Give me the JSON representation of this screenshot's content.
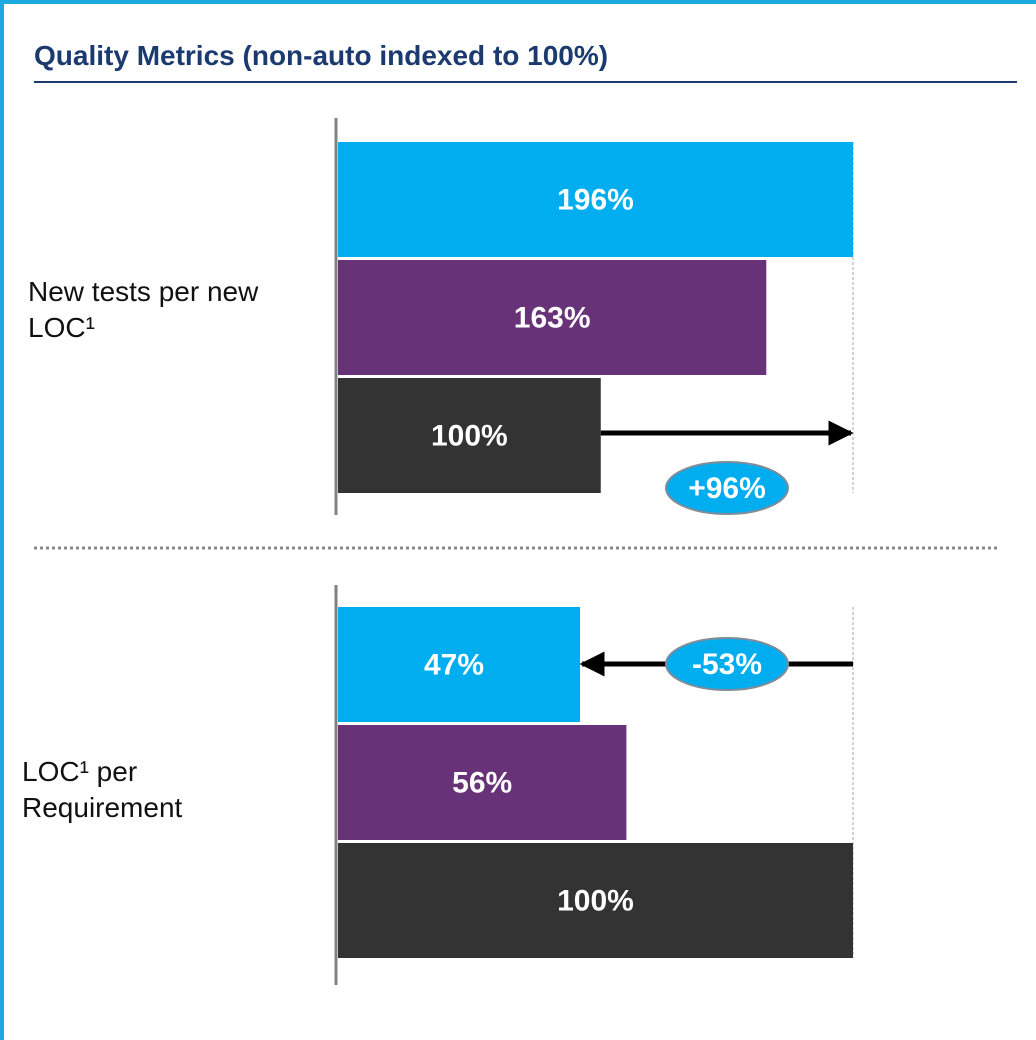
{
  "title": "Quality Metrics (non-auto indexed to 100%)",
  "chart_data": [
    {
      "type": "bar",
      "orientation": "horizontal",
      "label": "New tests per new LOC¹",
      "values": [
        196,
        163,
        100
      ],
      "value_labels": [
        "196%",
        "163%",
        "100%"
      ],
      "colors": [
        "#00adef",
        "#673278",
        "#333333"
      ],
      "xlim": [
        0,
        196
      ],
      "annotation": {
        "label": "+96%",
        "value": 96
      }
    },
    {
      "type": "bar",
      "orientation": "horizontal",
      "label": "LOC¹ per Requirement",
      "values": [
        47,
        56,
        100
      ],
      "value_labels": [
        "47%",
        "56%",
        "100%"
      ],
      "colors": [
        "#00adef",
        "#673278",
        "#333333"
      ],
      "xlim": [
        0,
        100
      ],
      "annotation": {
        "label": "-53%",
        "value": -53
      }
    }
  ]
}
